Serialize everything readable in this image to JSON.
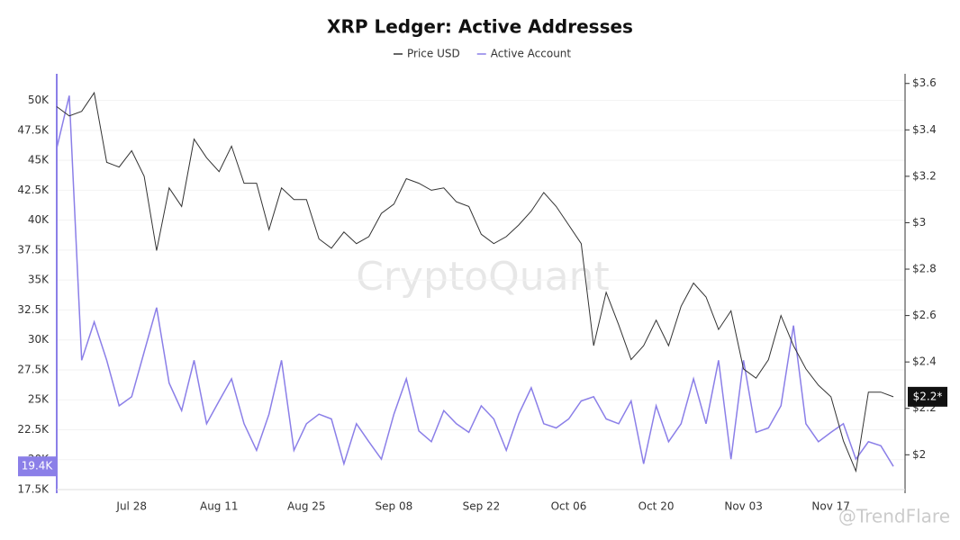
{
  "chart_data": {
    "type": "line",
    "title": "XRP Ledger: Active Addresses",
    "categories": [
      null,
      null,
      null,
      null,
      null,
      null,
      "Jul 28",
      null,
      null,
      null,
      null,
      null,
      null,
      "Aug 11",
      null,
      null,
      null,
      null,
      null,
      null,
      "Aug 25",
      null,
      null,
      null,
      null,
      null,
      null,
      "Sep 08",
      null,
      null,
      null,
      null,
      null,
      null,
      "Sep 22",
      null,
      null,
      null,
      null,
      null,
      null,
      "Oct 06",
      null,
      null,
      null,
      null,
      null,
      null,
      "Oct 20",
      null,
      null,
      null,
      null,
      null,
      null,
      "Nov 03",
      null,
      null,
      null,
      null,
      null,
      null,
      "Nov 17",
      null,
      null,
      null,
      null,
      null
    ],
    "series": [
      {
        "name": "Price USD",
        "color": "#333333",
        "axis": "y2",
        "values": [
          3.5,
          3.46,
          3.48,
          3.56,
          3.26,
          3.24,
          3.31,
          3.2,
          2.88,
          3.15,
          3.07,
          3.36,
          3.28,
          3.22,
          3.33,
          3.17,
          3.17,
          2.97,
          3.15,
          3.1,
          3.1,
          2.93,
          2.89,
          2.96,
          2.91,
          2.94,
          3.04,
          3.08,
          3.19,
          3.17,
          3.14,
          3.15,
          3.09,
          3.07,
          2.95,
          2.91,
          2.94,
          2.99,
          3.05,
          3.13,
          3.07,
          2.99,
          2.91,
          2.47,
          2.7,
          2.56,
          2.41,
          2.47,
          2.58,
          2.47,
          2.64,
          2.74,
          2.68,
          2.54,
          2.62,
          2.37,
          2.33,
          2.41,
          2.6,
          2.47,
          2.37,
          2.3,
          2.25,
          2.06,
          1.93,
          2.27,
          2.27,
          2.25
        ]
      },
      {
        "name": "Active Account",
        "color": "#8b7fe8",
        "values": [
          46000,
          50400,
          28300,
          31500,
          28300,
          24500,
          25260,
          29000,
          32700,
          26400,
          24100,
          28300,
          23000,
          24900,
          26750,
          23000,
          20780,
          23800,
          28300,
          20780,
          23000,
          23800,
          23400,
          19660,
          23000,
          21500,
          20040,
          23800,
          26750,
          22400,
          21500,
          24100,
          23000,
          22280,
          24500,
          23400,
          20780,
          23800,
          26000,
          23000,
          22650,
          23400,
          24900,
          25260,
          23400,
          23000,
          24900,
          19660,
          24500,
          21500,
          23000,
          26750,
          23000,
          28300,
          20040,
          28300,
          22280,
          22650,
          24500,
          31200,
          23000,
          21500,
          22280,
          23000,
          20040,
          21500,
          21160,
          19440
        ]
      }
    ],
    "ylim": [
      17500,
      52000
    ],
    "yticks": [
      {
        "value": 17500,
        "label": "17.5K"
      },
      {
        "value": 20000,
        "label": "20K"
      },
      {
        "value": 22500,
        "label": "22.5K"
      },
      {
        "value": 25000,
        "label": "25K"
      },
      {
        "value": 27500,
        "label": "27.5K"
      },
      {
        "value": 30000,
        "label": "30K"
      },
      {
        "value": 32500,
        "label": "32.5K"
      },
      {
        "value": 35000,
        "label": "35K"
      },
      {
        "value": 37500,
        "label": "37.5K"
      },
      {
        "value": 40000,
        "label": "40K"
      },
      {
        "value": 42500,
        "label": "42.5K"
      },
      {
        "value": 45000,
        "label": "45K"
      },
      {
        "value": 47500,
        "label": "47.5K"
      },
      {
        "value": 50000,
        "label": "50K"
      }
    ],
    "y2lim": [
      1.85,
      3.63
    ],
    "y2ticks": [
      {
        "value": 2,
        "label": "$2"
      },
      {
        "value": 2.2,
        "label": "$2.2"
      },
      {
        "value": 2.4,
        "label": "$2.4"
      },
      {
        "value": 2.6,
        "label": "$2.6"
      },
      {
        "value": 2.8,
        "label": "$2.8"
      },
      {
        "value": 3,
        "label": "$3"
      },
      {
        "value": 3.2,
        "label": "$3.2"
      },
      {
        "value": 3.4,
        "label": "$3.4"
      },
      {
        "value": 3.6,
        "label": "$3.6"
      }
    ],
    "grid": true,
    "legend": "top",
    "annotations": {
      "last_price": "$2.2*",
      "last_active": "19.4K",
      "watermark": "CryptoQuant",
      "credit": "@TrendFlare"
    }
  }
}
